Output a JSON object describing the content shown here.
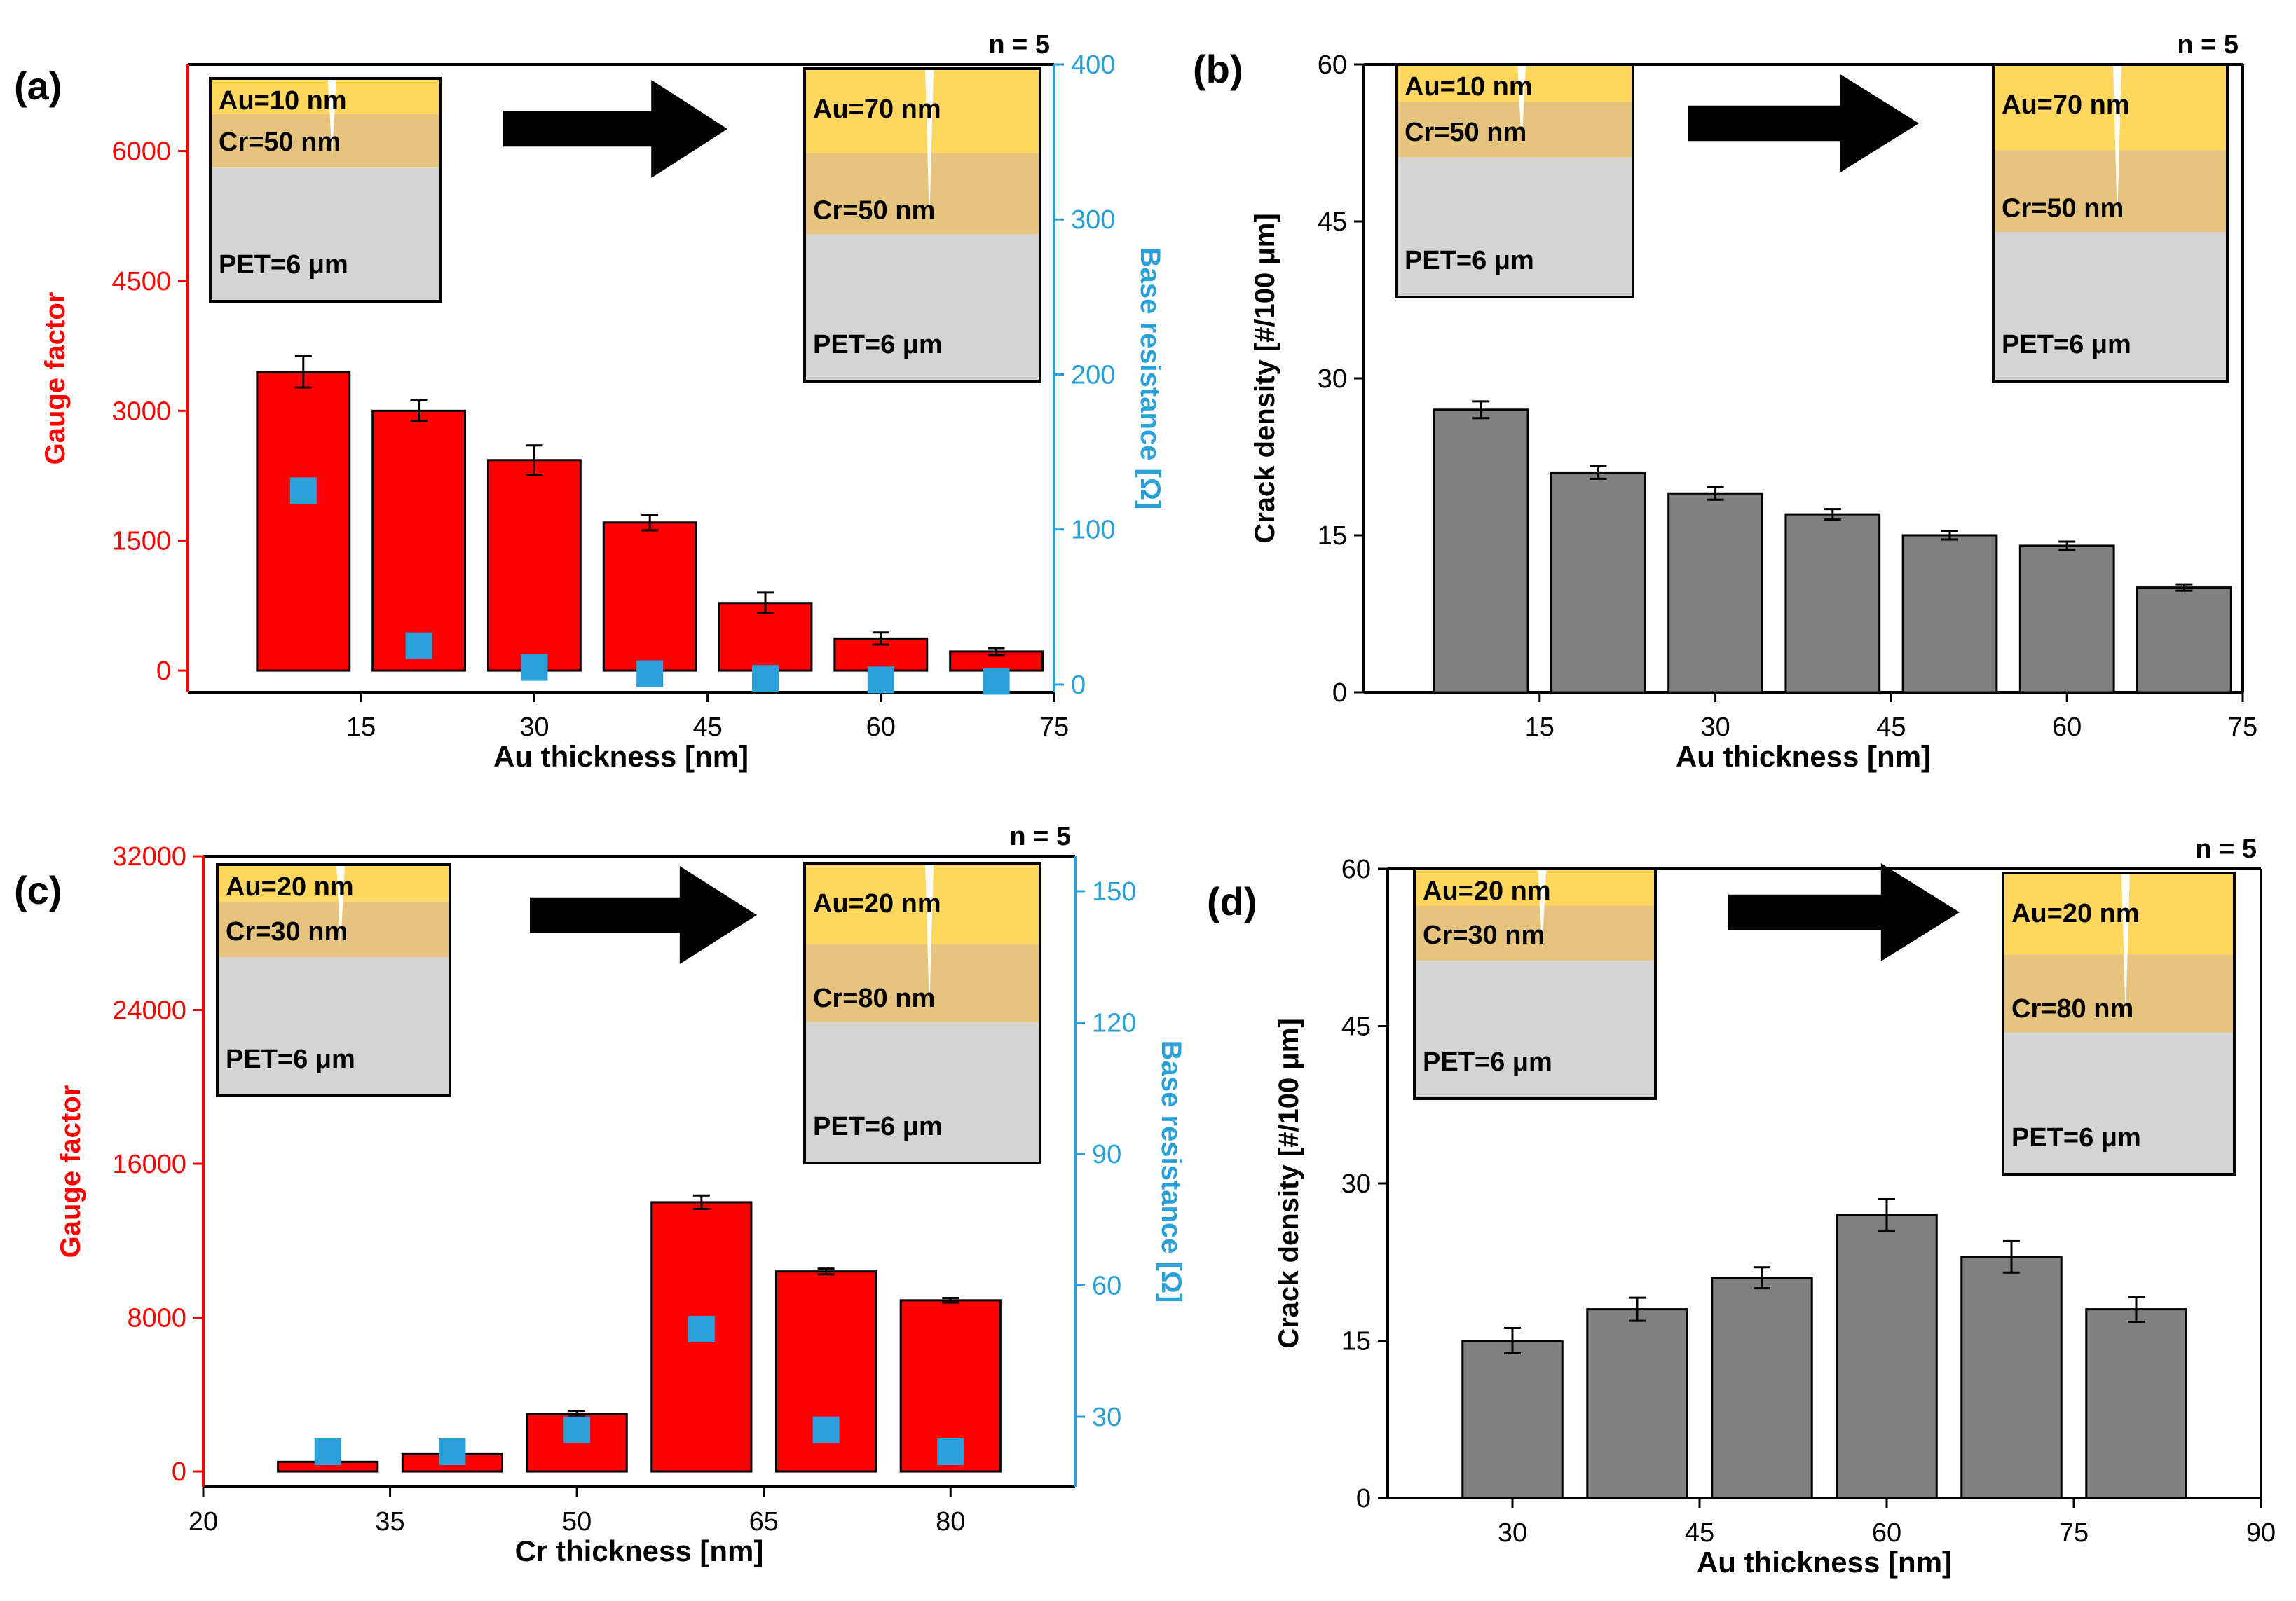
{
  "colors": {
    "bar_red": "#ff0000",
    "bar_gray": "#808080",
    "axis_red": "#ff0000",
    "axis_blue": "#29a0d8",
    "marker_blue": "#29a0d8",
    "layer_au": "#ffd75e",
    "layer_cr": "#e6c47e",
    "layer_pet": "#d4d4d4",
    "arrow": "#000000"
  },
  "chart_data": [
    {
      "panel_label": "(a)",
      "type": "bar",
      "n_label": "n = 5",
      "xlabel": "Au thickness [nm]",
      "ylabel": "Gauge factor",
      "y2label": "Base resistance [Ω]",
      "xlim": [
        0,
        75
      ],
      "xticks": [
        "15",
        "30",
        "45",
        "60",
        "75"
      ],
      "ylim": [
        -250,
        7000
      ],
      "yticks": [
        "0",
        "1500",
        "3000",
        "4500",
        "6000"
      ],
      "y2lim": [
        -5,
        400
      ],
      "y2ticks": [
        "0",
        "100",
        "200",
        "300",
        "400"
      ],
      "categories": [
        10,
        20,
        30,
        40,
        50,
        60,
        70
      ],
      "values": [
        3450,
        3000,
        2430,
        1710,
        780,
        370,
        220
      ],
      "errors": [
        180,
        120,
        170,
        90,
        120,
        70,
        40
      ],
      "y2_values": [
        125,
        25,
        11,
        7,
        4,
        3,
        2
      ],
      "inset_left": {
        "au": "Au=10 nm",
        "cr": "Cr=50 nm",
        "pet": "PET=6 μm"
      },
      "inset_right": {
        "au": "Au=70 nm",
        "cr": "Cr=50 nm",
        "pet": "PET=6 μm"
      }
    },
    {
      "panel_label": "(b)",
      "type": "bar",
      "n_label": "n = 5",
      "xlabel": "Au thickness [nm]",
      "ylabel": "Crack density [#/100 μm]",
      "xlim": [
        0,
        75
      ],
      "xticks": [
        "15",
        "30",
        "45",
        "60",
        "75"
      ],
      "ylim": [
        0,
        60
      ],
      "yticks": [
        "0",
        "15",
        "30",
        "45",
        "60"
      ],
      "categories": [
        10,
        20,
        30,
        40,
        50,
        60,
        70
      ],
      "values": [
        27,
        21,
        19,
        17,
        15,
        14,
        10
      ],
      "errors": [
        0.8,
        0.6,
        0.6,
        0.5,
        0.4,
        0.4,
        0.3
      ],
      "inset_left": {
        "au": "Au=10 nm",
        "cr": "Cr=50 nm",
        "pet": "PET=6 μm"
      },
      "inset_right": {
        "au": "Au=70 nm",
        "cr": "Cr=50 nm",
        "pet": "PET=6 μm"
      }
    },
    {
      "panel_label": "(c)",
      "type": "bar",
      "n_label": "n = 5",
      "xlabel": "Cr thickness [nm]",
      "ylabel": "Gauge factor",
      "y2label": "Base resistance [Ω]",
      "xlim": [
        20,
        90
      ],
      "xticks": [
        "20",
        "35",
        "50",
        "65",
        "80"
      ],
      "ylim": [
        -800,
        32000
      ],
      "yticks": [
        "0",
        "8000",
        "16000",
        "24000",
        "32000"
      ],
      "y2lim": [
        14,
        158
      ],
      "y2ticks": [
        "30",
        "60",
        "90",
        "120",
        "150"
      ],
      "categories": [
        30,
        40,
        50,
        60,
        70,
        80
      ],
      "values": [
        500,
        900,
        3000,
        14000,
        10400,
        8900
      ],
      "errors": [
        60,
        80,
        150,
        350,
        150,
        120
      ],
      "y2_values": [
        22,
        22,
        27,
        50,
        27,
        22
      ],
      "inset_left": {
        "au": "Au=20 nm",
        "cr": "Cr=30 nm",
        "pet": "PET=6 μm"
      },
      "inset_right": {
        "au": "Au=20 nm",
        "cr": "Cr=80 nm",
        "pet": "PET=6 μm"
      }
    },
    {
      "panel_label": "(d)",
      "type": "bar",
      "n_label": "n = 5",
      "xlabel": "Au thickness [nm]",
      "ylabel": "Crack density [#/100 μm]",
      "xlim": [
        20,
        90
      ],
      "xticks": [
        "30",
        "45",
        "60",
        "75",
        "90"
      ],
      "ylim": [
        0,
        60
      ],
      "yticks": [
        "0",
        "15",
        "30",
        "45",
        "60"
      ],
      "categories": [
        30,
        40,
        50,
        60,
        70,
        80
      ],
      "values": [
        15,
        18,
        21,
        27,
        23,
        18
      ],
      "errors": [
        1.2,
        1.1,
        1.0,
        1.5,
        1.5,
        1.2
      ],
      "inset_left": {
        "au": "Au=20 nm",
        "cr": "Cr=30 nm",
        "pet": "PET=6 μm"
      },
      "inset_right": {
        "au": "Au=20 nm",
        "cr": "Cr=80 nm",
        "pet": "PET=6 μm"
      }
    }
  ]
}
